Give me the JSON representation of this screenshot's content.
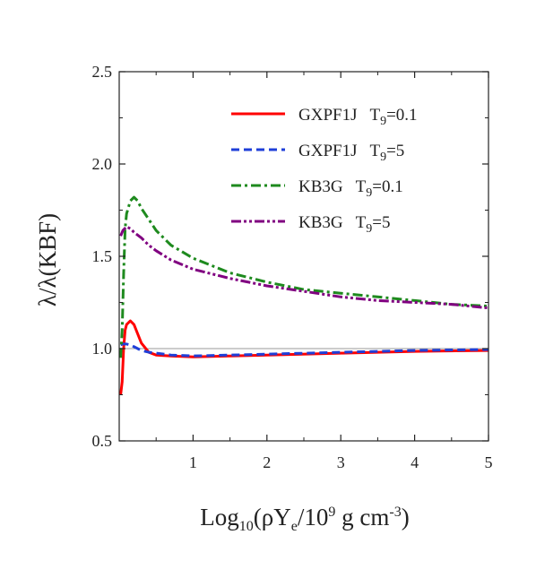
{
  "chart_data": {
    "type": "line",
    "xlabel_parts": {
      "pre": "Log",
      "sub1": "10",
      "mid": "(ρY",
      "sub2": "e",
      "mid2": "/10",
      "sup1": "9",
      "mid3": " g cm",
      "sup2": "-3",
      "post": ")"
    },
    "ylabel": "λ/λ(KBF)",
    "xlim": [
      0,
      5
    ],
    "ylim": [
      0.5,
      2.5
    ],
    "x_ticks": [
      "1",
      "2",
      "3",
      "4",
      "5"
    ],
    "y_ticks": [
      "0.5",
      "1.0",
      "1.5",
      "2.0",
      "2.5"
    ],
    "reference_line": 1.0,
    "legend_position": "top-right",
    "series": [
      {
        "name": "GXPF1J",
        "temp_label": "T",
        "temp_sub": "9",
        "temp_value": "=0.1",
        "color": "#ff0000",
        "dash": "solid",
        "x": [
          0.02,
          0.04,
          0.06,
          0.08,
          0.1,
          0.15,
          0.2,
          0.25,
          0.3,
          0.4,
          0.5,
          0.7,
          1.0,
          1.5,
          2.0,
          3.0,
          4.0,
          5.0
        ],
        "y": [
          0.75,
          0.82,
          1.0,
          1.1,
          1.13,
          1.15,
          1.13,
          1.08,
          1.03,
          0.98,
          0.965,
          0.96,
          0.955,
          0.96,
          0.965,
          0.975,
          0.985,
          0.99
        ]
      },
      {
        "name": "GXPF1J",
        "temp_label": "T",
        "temp_sub": "9",
        "temp_value": "=5",
        "color": "#1f3fd8",
        "dash": "dashed",
        "x": [
          0.02,
          0.05,
          0.1,
          0.15,
          0.2,
          0.3,
          0.4,
          0.5,
          0.7,
          1.0,
          1.5,
          2.0,
          3.0,
          4.0,
          5.0
        ],
        "y": [
          1.02,
          1.025,
          1.025,
          1.02,
          1.01,
          0.99,
          0.98,
          0.975,
          0.965,
          0.96,
          0.965,
          0.97,
          0.98,
          0.99,
          0.995
        ]
      },
      {
        "name": "KB3G",
        "temp_label": "T",
        "temp_sub": "9",
        "temp_value": "=0.1",
        "color": "#1e8a1e",
        "dash": "dashdot",
        "x": [
          0.02,
          0.04,
          0.06,
          0.08,
          0.1,
          0.15,
          0.2,
          0.25,
          0.3,
          0.4,
          0.5,
          0.7,
          1.0,
          1.5,
          2.0,
          2.5,
          3.0,
          3.5,
          4.0,
          4.5,
          5.0
        ],
        "y": [
          0.95,
          1.1,
          1.4,
          1.65,
          1.73,
          1.8,
          1.82,
          1.8,
          1.76,
          1.7,
          1.64,
          1.56,
          1.49,
          1.41,
          1.36,
          1.32,
          1.3,
          1.28,
          1.26,
          1.24,
          1.23
        ]
      },
      {
        "name": "KB3G",
        "temp_label": "T",
        "temp_sub": "9",
        "temp_value": "=5",
        "color": "#800080",
        "dash": "dashdotdot",
        "x": [
          0.02,
          0.05,
          0.1,
          0.15,
          0.2,
          0.3,
          0.4,
          0.5,
          0.7,
          1.0,
          1.5,
          2.0,
          2.5,
          3.0,
          3.5,
          4.0,
          4.5,
          5.0
        ],
        "y": [
          1.61,
          1.64,
          1.66,
          1.65,
          1.63,
          1.6,
          1.56,
          1.53,
          1.48,
          1.43,
          1.38,
          1.34,
          1.31,
          1.28,
          1.26,
          1.25,
          1.24,
          1.22
        ]
      }
    ]
  }
}
